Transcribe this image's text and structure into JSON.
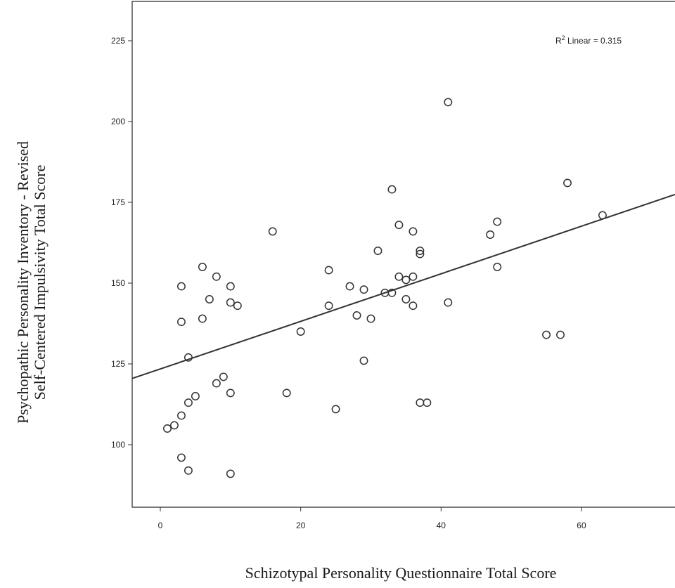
{
  "chart_data": {
    "type": "scatter",
    "xlabel": "Schizotypal Personality Questionnaire Total Score",
    "ylabel_lines": [
      "Psychopathic Personality Inventory - Revised",
      "Self-Centered Impulsivity Total Score"
    ],
    "xlim": [
      -4,
      73
    ],
    "ylim": [
      80,
      230
    ],
    "x_ticks": [
      0,
      20,
      40,
      60
    ],
    "y_ticks": [
      100,
      125,
      150,
      175,
      200,
      225
    ],
    "grid": false,
    "fit_line": {
      "label_prefix": "R",
      "label_sup": "2",
      "label_suffix": " Linear = 0.315",
      "intercept": 123.45,
      "slope": 0.7393
    },
    "points": [
      {
        "x": 1,
        "y": 105
      },
      {
        "x": 2,
        "y": 106
      },
      {
        "x": 3,
        "y": 109
      },
      {
        "x": 3,
        "y": 96
      },
      {
        "x": 4,
        "y": 92
      },
      {
        "x": 4,
        "y": 113
      },
      {
        "x": 5,
        "y": 115
      },
      {
        "x": 4,
        "y": 127
      },
      {
        "x": 3,
        "y": 138
      },
      {
        "x": 3,
        "y": 149
      },
      {
        "x": 6,
        "y": 155
      },
      {
        "x": 6,
        "y": 139
      },
      {
        "x": 7,
        "y": 145
      },
      {
        "x": 8,
        "y": 152
      },
      {
        "x": 8,
        "y": 119
      },
      {
        "x": 9,
        "y": 121
      },
      {
        "x": 10,
        "y": 116
      },
      {
        "x": 10,
        "y": 91
      },
      {
        "x": 10,
        "y": 149
      },
      {
        "x": 10,
        "y": 144
      },
      {
        "x": 11,
        "y": 143
      },
      {
        "x": 16,
        "y": 166
      },
      {
        "x": 18,
        "y": 116
      },
      {
        "x": 20,
        "y": 135
      },
      {
        "x": 24,
        "y": 154
      },
      {
        "x": 24,
        "y": 143
      },
      {
        "x": 25,
        "y": 111
      },
      {
        "x": 27,
        "y": 149
      },
      {
        "x": 28,
        "y": 140
      },
      {
        "x": 29,
        "y": 148
      },
      {
        "x": 29,
        "y": 126
      },
      {
        "x": 30,
        "y": 139
      },
      {
        "x": 31,
        "y": 160
      },
      {
        "x": 32,
        "y": 147
      },
      {
        "x": 33,
        "y": 147
      },
      {
        "x": 33,
        "y": 179
      },
      {
        "x": 34,
        "y": 168
      },
      {
        "x": 34,
        "y": 152
      },
      {
        "x": 35,
        "y": 151
      },
      {
        "x": 35,
        "y": 145
      },
      {
        "x": 36,
        "y": 166
      },
      {
        "x": 36,
        "y": 152
      },
      {
        "x": 36,
        "y": 143
      },
      {
        "x": 37,
        "y": 160
      },
      {
        "x": 37,
        "y": 159
      },
      {
        "x": 37,
        "y": 113
      },
      {
        "x": 38,
        "y": 113
      },
      {
        "x": 41,
        "y": 206
      },
      {
        "x": 41,
        "y": 144
      },
      {
        "x": 47,
        "y": 165
      },
      {
        "x": 48,
        "y": 169
      },
      {
        "x": 48,
        "y": 155
      },
      {
        "x": 55,
        "y": 134
      },
      {
        "x": 57,
        "y": 134
      },
      {
        "x": 58,
        "y": 181
      },
      {
        "x": 63,
        "y": 171
      }
    ]
  }
}
